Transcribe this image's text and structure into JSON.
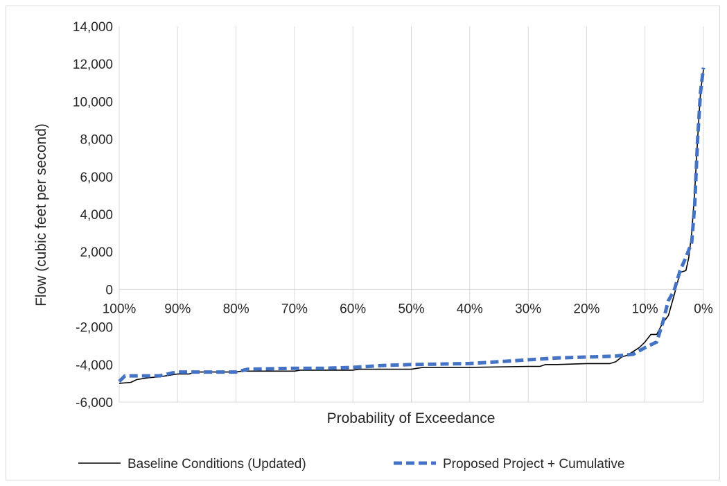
{
  "chart_data": {
    "type": "line",
    "title": "",
    "xlabel": "Probability of Exceedance",
    "ylabel": "Flow (cubic feet per second)",
    "xlim": [
      100,
      0
    ],
    "ylim": [
      -6000,
      14000
    ],
    "x_reversed": true,
    "x_ticks": [
      100,
      90,
      80,
      70,
      60,
      50,
      40,
      30,
      20,
      10,
      0
    ],
    "x_tick_labels": [
      "100%",
      "90%",
      "80%",
      "70%",
      "60%",
      "50%",
      "40%",
      "30%",
      "20%",
      "10%",
      "0%"
    ],
    "y_ticks": [
      -6000,
      -4000,
      -2000,
      0,
      2000,
      4000,
      6000,
      8000,
      10000,
      12000,
      14000
    ],
    "y_tick_labels": [
      "-6,000",
      "-4,000",
      "-2,000",
      "0",
      "2,000",
      "4,000",
      "6,000",
      "8,000",
      "10,000",
      "12,000",
      "14,000"
    ],
    "grid": "vertical",
    "legend_position": "bottom",
    "series": [
      {
        "name": "Baseline Conditions (Updated)",
        "color": "#000000",
        "style": "solid",
        "points": [
          [
            100,
            -5000
          ],
          [
            98,
            -4950
          ],
          [
            97,
            -4800
          ],
          [
            95,
            -4700
          ],
          [
            93,
            -4650
          ],
          [
            91,
            -4550
          ],
          [
            90,
            -4500
          ],
          [
            88,
            -4500
          ],
          [
            87,
            -4400
          ],
          [
            80,
            -4400
          ],
          [
            79,
            -4350
          ],
          [
            70,
            -4350
          ],
          [
            69,
            -4300
          ],
          [
            60,
            -4300
          ],
          [
            59,
            -4250
          ],
          [
            50,
            -4250
          ],
          [
            49,
            -4200
          ],
          [
            48,
            -4150
          ],
          [
            40,
            -4150
          ],
          [
            30,
            -4100
          ],
          [
            28,
            -4100
          ],
          [
            27,
            -4000
          ],
          [
            25,
            -4000
          ],
          [
            20,
            -3950
          ],
          [
            16,
            -3950
          ],
          [
            15,
            -3850
          ],
          [
            14,
            -3600
          ],
          [
            13,
            -3500
          ],
          [
            11,
            -3100
          ],
          [
            10,
            -2800
          ],
          [
            9,
            -2400
          ],
          [
            8,
            -2400
          ],
          [
            7,
            -1800
          ],
          [
            6,
            -1400
          ],
          [
            5,
            -300
          ],
          [
            4.5,
            300
          ],
          [
            4,
            900
          ],
          [
            3,
            1000
          ],
          [
            2.5,
            1700
          ],
          [
            2,
            3000
          ],
          [
            1.5,
            5200
          ],
          [
            1,
            8000
          ],
          [
            0.5,
            10500
          ],
          [
            0,
            11700
          ]
        ]
      },
      {
        "name": "Proposed Project + Cumulative",
        "color": "#4472C4",
        "style": "dashed",
        "points": [
          [
            100,
            -4900
          ],
          [
            99,
            -4600
          ],
          [
            95,
            -4600
          ],
          [
            93,
            -4600
          ],
          [
            91,
            -4450
          ],
          [
            90,
            -4400
          ],
          [
            80,
            -4400
          ],
          [
            78,
            -4250
          ],
          [
            70,
            -4200
          ],
          [
            65,
            -4200
          ],
          [
            60,
            -4150
          ],
          [
            55,
            -4050
          ],
          [
            50,
            -4000
          ],
          [
            40,
            -3950
          ],
          [
            35,
            -3850
          ],
          [
            30,
            -3750
          ],
          [
            25,
            -3650
          ],
          [
            20,
            -3600
          ],
          [
            15,
            -3550
          ],
          [
            12,
            -3450
          ],
          [
            10,
            -3100
          ],
          [
            8,
            -2800
          ],
          [
            7,
            -1800
          ],
          [
            6,
            -600
          ],
          [
            5,
            -50
          ],
          [
            4,
            1000
          ],
          [
            3,
            1700
          ],
          [
            2,
            2500
          ],
          [
            1.5,
            4500
          ],
          [
            1,
            8000
          ],
          [
            0.5,
            10500
          ],
          [
            0,
            11800
          ]
        ]
      }
    ]
  }
}
